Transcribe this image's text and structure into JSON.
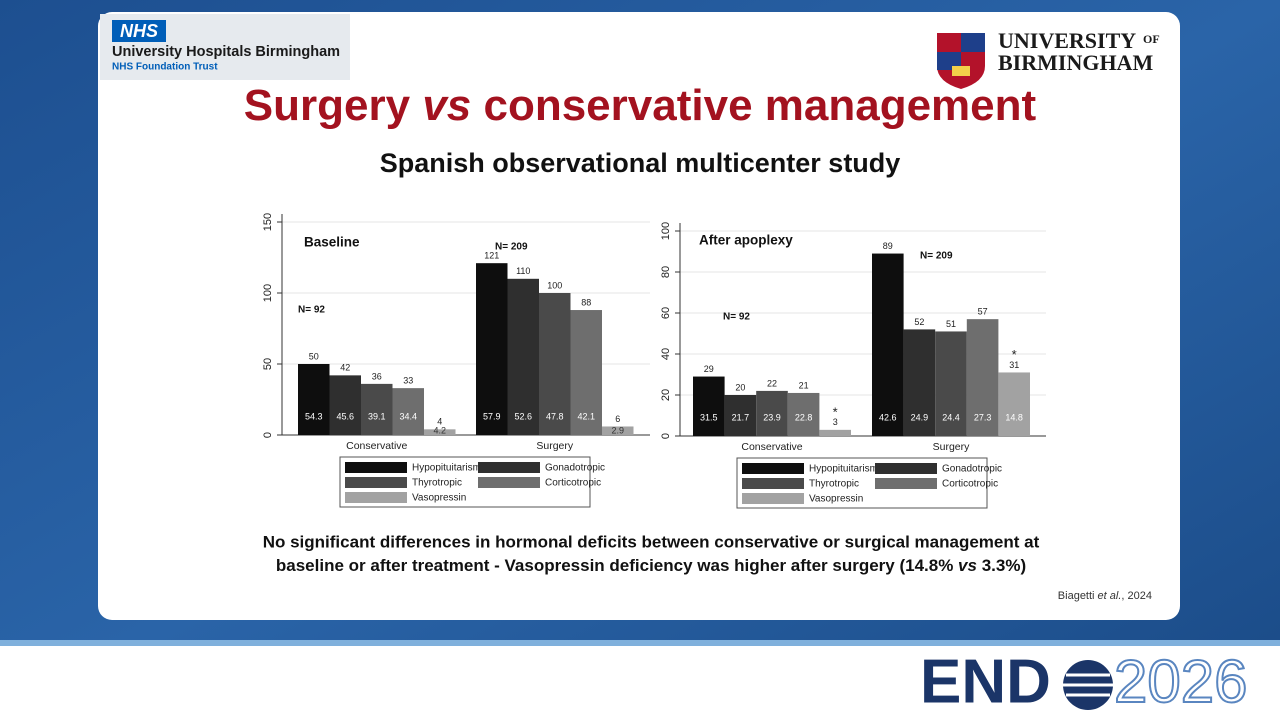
{
  "header": {
    "nhs_badge": "NHS",
    "nhs_name": "University Hospitals Birmingham",
    "nhs_trust": "NHS Foundation Trust",
    "university_line1": "UNIVERSITY",
    "university_of": "OF",
    "university_line2": "BIRMINGHAM"
  },
  "title_parts": [
    "Surgery ",
    "vs",
    " conservative management"
  ],
  "subtitle": "Spanish observational multicenter study",
  "chart_data": [
    {
      "type": "bar",
      "title": "Baseline",
      "categories": [
        "Conservative",
        "Surgery"
      ],
      "series": [
        {
          "name": "Hypopituitarism",
          "color": "#0e0e0e",
          "values": [
            50,
            121
          ],
          "percentages": [
            54.3,
            57.9
          ]
        },
        {
          "name": "Gonadotropic",
          "color": "#2f2f2f",
          "values": [
            42,
            110
          ],
          "percentages": [
            45.6,
            52.6
          ]
        },
        {
          "name": "Thyrotropic",
          "color": "#4a4a4a",
          "values": [
            36,
            100
          ],
          "percentages": [
            39.1,
            47.8
          ]
        },
        {
          "name": "Corticotropic",
          "color": "#6e6e6e",
          "values": [
            33,
            88
          ],
          "percentages": [
            34.4,
            42.1
          ]
        },
        {
          "name": "Vasopressin",
          "color": "#a2a2a2",
          "values": [
            4,
            6
          ],
          "percentages": [
            4.2,
            2.9
          ]
        }
      ],
      "annotations": [
        "N= 92",
        "N= 209"
      ],
      "ylim": [
        0,
        150
      ],
      "yticks": [
        0,
        50,
        100,
        150
      ],
      "grid": true
    },
    {
      "type": "bar",
      "title": "After apoplexy",
      "categories": [
        "Conservative",
        "Surgery"
      ],
      "series": [
        {
          "name": "Hypopituitarism",
          "color": "#0e0e0e",
          "values": [
            29,
            89
          ],
          "percentages": [
            31.5,
            42.6
          ]
        },
        {
          "name": "Gonadotropic",
          "color": "#2f2f2f",
          "values": [
            20,
            52
          ],
          "percentages": [
            21.7,
            24.9
          ]
        },
        {
          "name": "Thyrotropic",
          "color": "#4a4a4a",
          "values": [
            22,
            51
          ],
          "percentages": [
            23.9,
            24.4
          ]
        },
        {
          "name": "Corticotropic",
          "color": "#6e6e6e",
          "values": [
            21,
            57
          ],
          "percentages": [
            22.8,
            27.3
          ]
        },
        {
          "name": "Vasopressin",
          "color": "#a2a2a2",
          "values": [
            3,
            31
          ],
          "percentages": [
            null,
            14.8
          ],
          "markers": [
            "*",
            "*"
          ]
        }
      ],
      "annotations": [
        "N= 92",
        "N= 209"
      ],
      "ylim": [
        0,
        100
      ],
      "yticks": [
        0,
        20,
        40,
        60,
        80,
        100
      ],
      "grid": true
    }
  ],
  "conclusion": {
    "line1": "No significant differences in hormonal deficits between conservative or surgical management at",
    "line2_parts": [
      "baseline or after treatment - Vasopressin deficiency was higher after surgery (14.8% ",
      "vs",
      " 3.3%)"
    ]
  },
  "citation_parts": [
    "Biagetti ",
    "et al.",
    ", 2024"
  ],
  "footer": {
    "brand_left": "END",
    "brand_right": "2026"
  }
}
